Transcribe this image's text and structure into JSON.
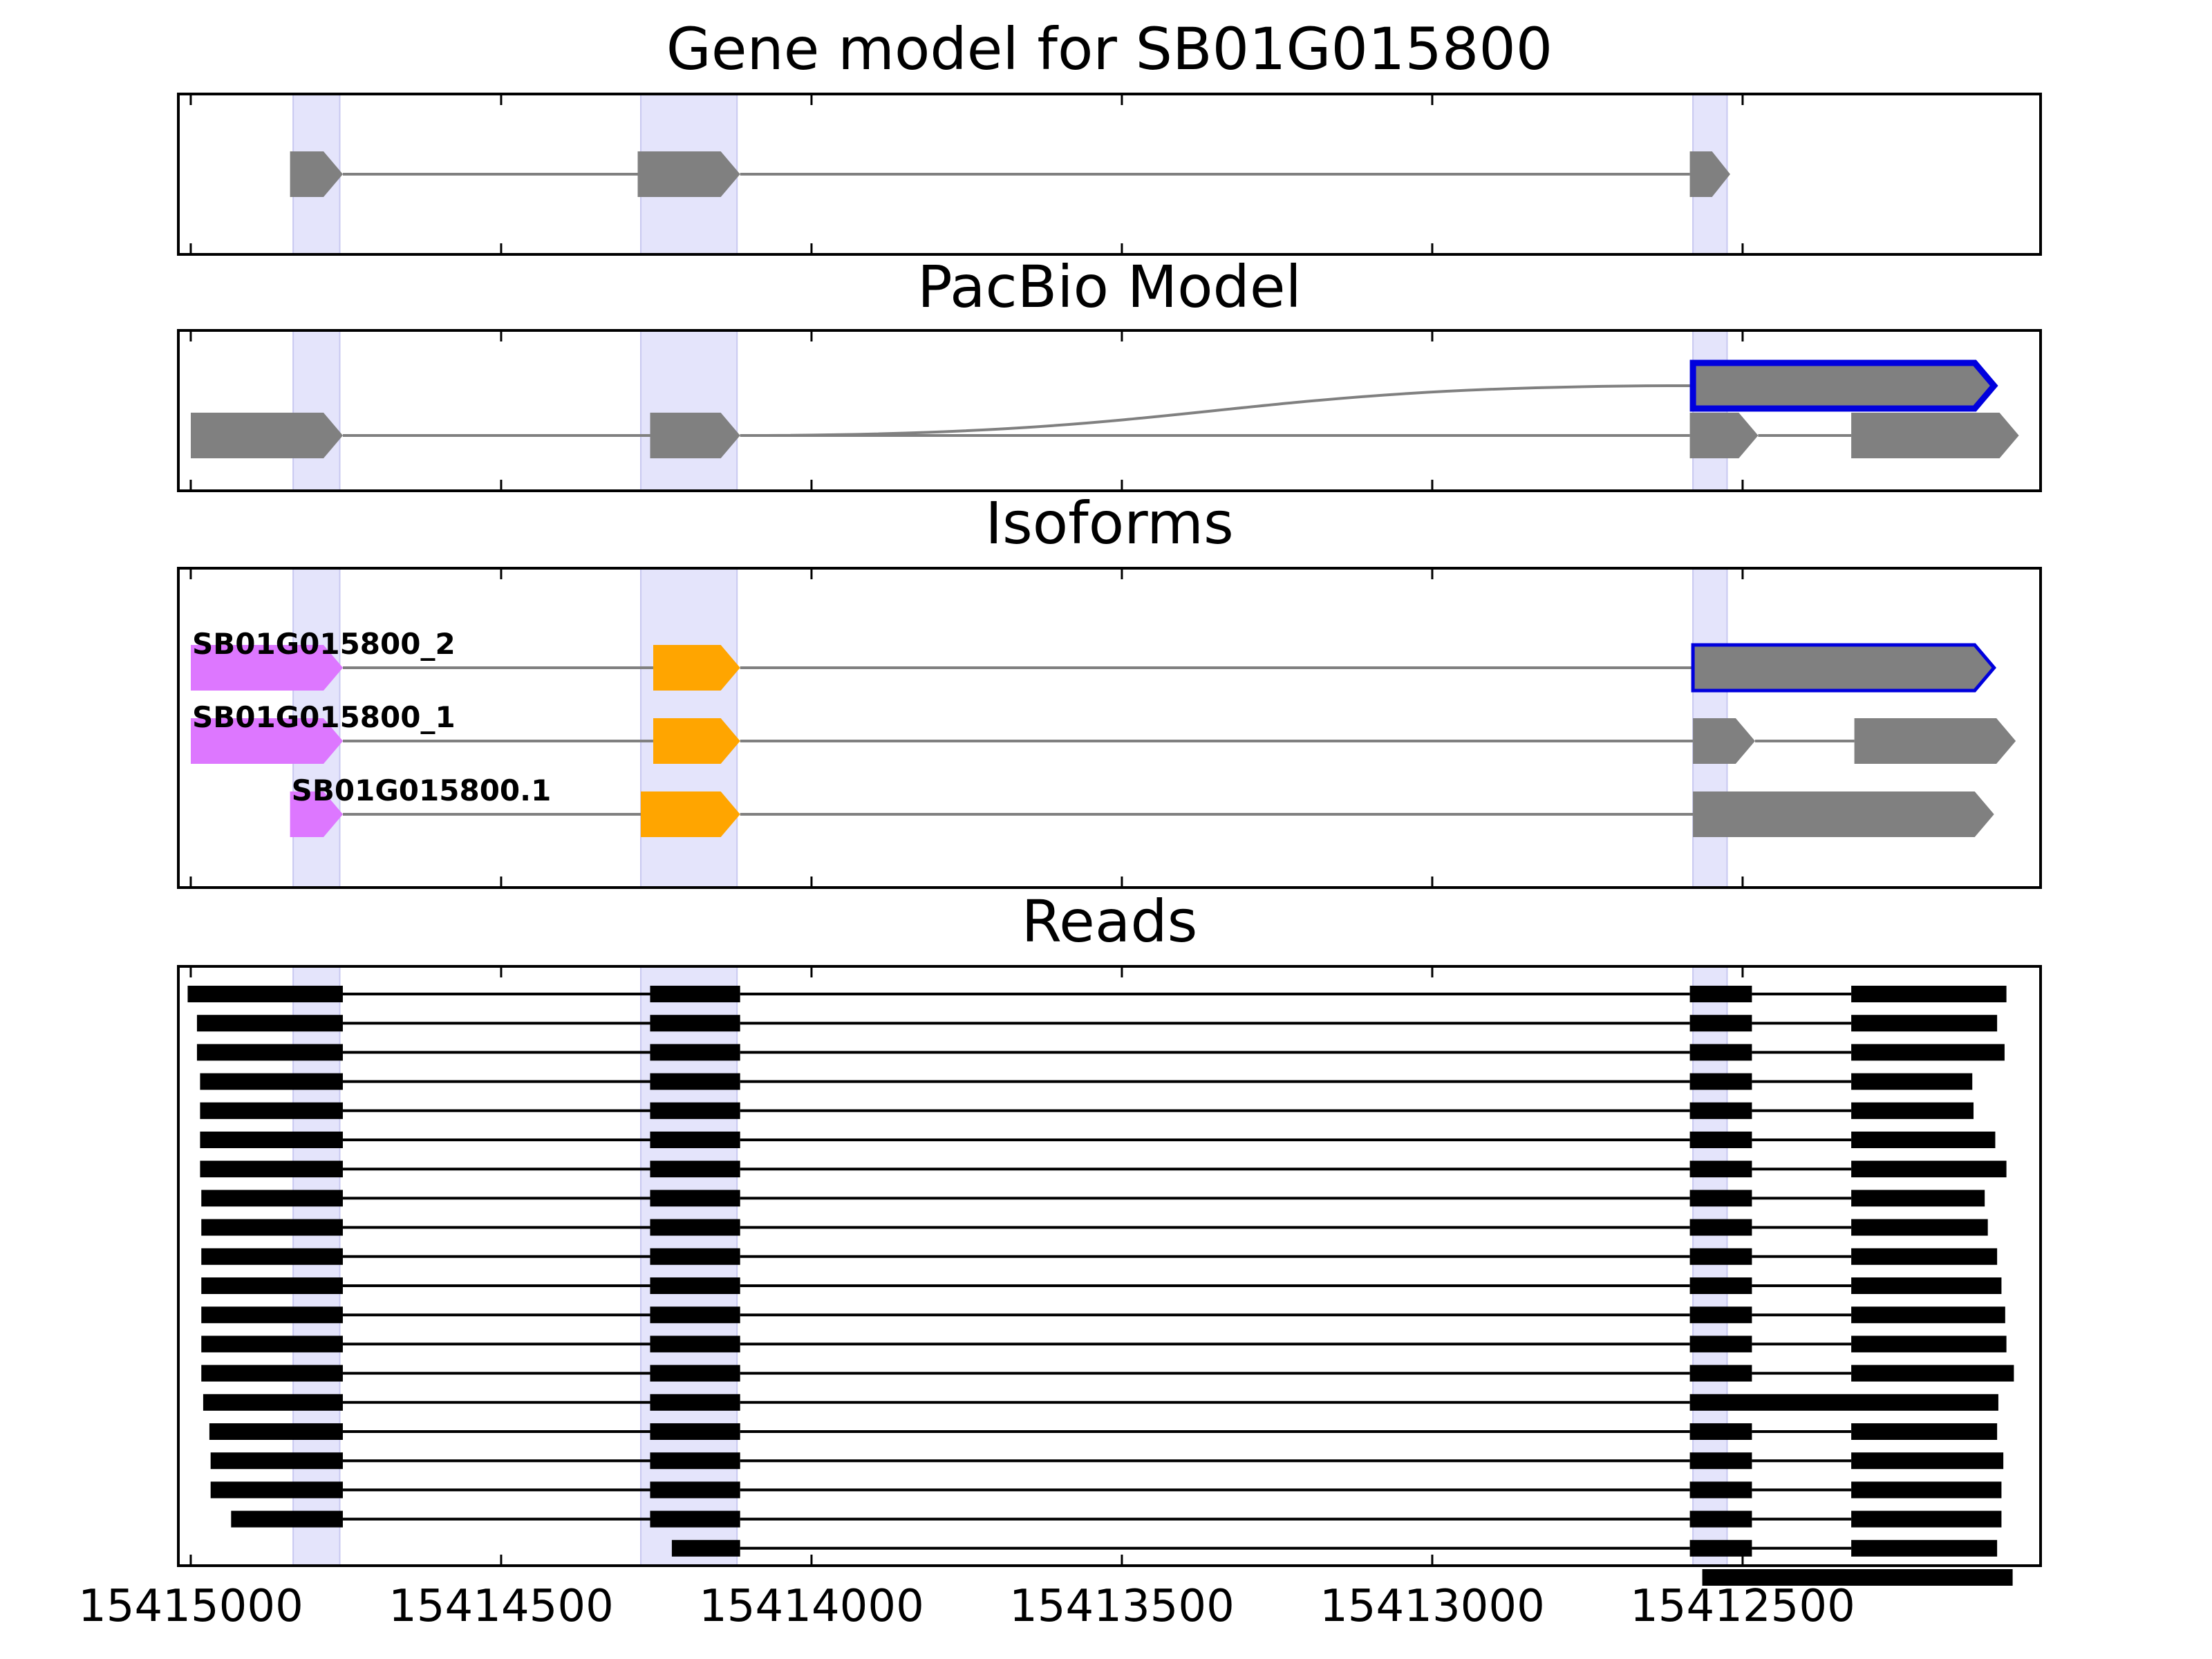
{
  "chart_data": {
    "type": "gene-track",
    "x_axis": {
      "direction": "reversed",
      "xlim": [
        15415020,
        15412020
      ],
      "ticks": [
        {
          "value": 15415000,
          "label": "15415000"
        },
        {
          "value": 15414500,
          "label": "15414500"
        },
        {
          "value": 15414000,
          "label": "15414000"
        },
        {
          "value": 15413500,
          "label": "15413500"
        },
        {
          "value": 15413000,
          "label": "15413000"
        },
        {
          "value": 15412500,
          "label": "15412500"
        }
      ]
    },
    "colors": {
      "gene": "#808080",
      "line": "#808080",
      "highlight": "#e4e4fb",
      "selected_outline": "#0000dd",
      "utr5": "#dd77ff",
      "cds_start": "#ffa500",
      "read": "#000000",
      "read_line": "#000000"
    },
    "highlights": [
      {
        "start": 15414835,
        "end": 15414760
      },
      {
        "start": 15414275,
        "end": 15414120
      },
      {
        "start": 15412580,
        "end": 15412525
      }
    ],
    "panels": [
      {
        "title": "Gene model for SB01G015800",
        "tracks": [
          {
            "label": "",
            "exons": [
              {
                "start": 15414840,
                "end": 15414755
              },
              {
                "start": 15414280,
                "end": 15414115
              },
              {
                "start": 15412585,
                "end": 15412520
              }
            ]
          }
        ]
      },
      {
        "title": "PacBio Model",
        "branch": {
          "from_x": 15414115,
          "from_row": 1,
          "to_x": 15412585,
          "to_row": 0
        },
        "tracks": [
          {
            "label": "",
            "selected": true,
            "exons": [
              {
                "start": 15412580,
                "end": 15412095
              }
            ]
          },
          {
            "label": "",
            "exons": [
              {
                "start": 15415000,
                "end": 15414755
              },
              {
                "start": 15414260,
                "end": 15414115
              },
              {
                "start": 15412585,
                "end": 15412475
              },
              {
                "start": 15412325,
                "end": 15412055
              }
            ]
          }
        ]
      },
      {
        "title": "Isoforms",
        "tracks": [
          {
            "label": "SB01G015800_2",
            "selected": true,
            "exons": [
              {
                "start": 15415000,
                "end": 15414755,
                "kind": "utr5"
              },
              {
                "start": 15414255,
                "end": 15414115,
                "kind": "cds_start"
              },
              {
                "start": 15412580,
                "end": 15412095
              }
            ]
          },
          {
            "label": "SB01G015800_1",
            "exons": [
              {
                "start": 15415000,
                "end": 15414755,
                "kind": "utr5"
              },
              {
                "start": 15414255,
                "end": 15414115,
                "kind": "cds_start"
              },
              {
                "start": 15412580,
                "end": 15412480
              },
              {
                "start": 15412320,
                "end": 15412060
              }
            ]
          },
          {
            "label": "SB01G015800.1",
            "exons": [
              {
                "start": 15414840,
                "end": 15414755,
                "kind": "utr5"
              },
              {
                "start": 15414275,
                "end": 15414115,
                "kind": "cds_start"
              },
              {
                "start": 15412580,
                "end": 15412095
              }
            ]
          }
        ]
      },
      {
        "title": "Reads",
        "reads": [
          {
            "exons": [
              [
                15415005,
                15414755
              ],
              [
                15414260,
                15414115
              ],
              [
                15412585,
                15412485
              ],
              [
                15412325,
                15412075
              ]
            ]
          },
          {
            "exons": [
              [
                15414990,
                15414755
              ],
              [
                15414260,
                15414115
              ],
              [
                15412585,
                15412485
              ],
              [
                15412325,
                15412090
              ]
            ]
          },
          {
            "exons": [
              [
                15414990,
                15414755
              ],
              [
                15414260,
                15414115
              ],
              [
                15412585,
                15412485
              ],
              [
                15412325,
                15412078
              ]
            ]
          },
          {
            "exons": [
              [
                15414985,
                15414755
              ],
              [
                15414260,
                15414115
              ],
              [
                15412585,
                15412485
              ],
              [
                15412325,
                15412130
              ]
            ]
          },
          {
            "exons": [
              [
                15414985,
                15414755
              ],
              [
                15414260,
                15414115
              ],
              [
                15412585,
                15412485
              ],
              [
                15412325,
                15412128
              ]
            ]
          },
          {
            "exons": [
              [
                15414985,
                15414755
              ],
              [
                15414260,
                15414115
              ],
              [
                15412585,
                15412485
              ],
              [
                15412325,
                15412093
              ]
            ]
          },
          {
            "exons": [
              [
                15414985,
                15414755
              ],
              [
                15414260,
                15414115
              ],
              [
                15412585,
                15412485
              ],
              [
                15412325,
                15412075
              ]
            ]
          },
          {
            "exons": [
              [
                15414983,
                15414755
              ],
              [
                15414260,
                15414115
              ],
              [
                15412585,
                15412485
              ],
              [
                15412325,
                15412110
              ]
            ]
          },
          {
            "exons": [
              [
                15414983,
                15414755
              ],
              [
                15414260,
                15414115
              ],
              [
                15412585,
                15412485
              ],
              [
                15412325,
                15412105
              ]
            ]
          },
          {
            "exons": [
              [
                15414983,
                15414755
              ],
              [
                15414260,
                15414115
              ],
              [
                15412585,
                15412485
              ],
              [
                15412325,
                15412090
              ]
            ]
          },
          {
            "exons": [
              [
                15414983,
                15414755
              ],
              [
                15414260,
                15414115
              ],
              [
                15412585,
                15412485
              ],
              [
                15412325,
                15412083
              ]
            ]
          },
          {
            "exons": [
              [
                15414983,
                15414755
              ],
              [
                15414260,
                15414115
              ],
              [
                15412585,
                15412485
              ],
              [
                15412325,
                15412077
              ]
            ]
          },
          {
            "exons": [
              [
                15414983,
                15414755
              ],
              [
                15414260,
                15414115
              ],
              [
                15412585,
                15412485
              ],
              [
                15412325,
                15412075
              ]
            ]
          },
          {
            "exons": [
              [
                15414983,
                15414755
              ],
              [
                15414260,
                15414115
              ],
              [
                15412585,
                15412485
              ],
              [
                15412325,
                15412063
              ]
            ]
          },
          {
            "exons": [
              [
                15414980,
                15414755
              ],
              [
                15414260,
                15414115
              ],
              [
                15412585,
                15412088
              ]
            ]
          },
          {
            "exons": [
              [
                15414970,
                15414755
              ],
              [
                15414260,
                15414115
              ],
              [
                15412585,
                15412485
              ],
              [
                15412325,
                15412090
              ]
            ]
          },
          {
            "exons": [
              [
                15414968,
                15414755
              ],
              [
                15414260,
                15414115
              ],
              [
                15412585,
                15412485
              ],
              [
                15412325,
                15412080
              ]
            ]
          },
          {
            "exons": [
              [
                15414968,
                15414755
              ],
              [
                15414260,
                15414115
              ],
              [
                15412585,
                15412485
              ],
              [
                15412325,
                15412083
              ]
            ]
          },
          {
            "exons": [
              [
                15414935,
                15414755
              ],
              [
                15414260,
                15414115
              ],
              [
                15412585,
                15412485
              ],
              [
                15412325,
                15412083
              ]
            ]
          },
          {
            "exons": [
              [
                15414225,
                15414115
              ],
              [
                15412585,
                15412485
              ],
              [
                15412325,
                15412090
              ]
            ]
          },
          {
            "exons": [
              [
                15412565,
                15412065
              ]
            ]
          }
        ]
      }
    ]
  }
}
